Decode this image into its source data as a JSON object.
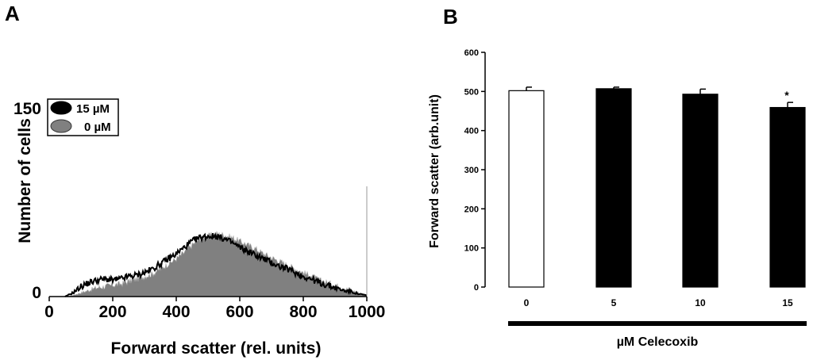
{
  "chart_data": [
    {
      "type": "area",
      "panel_label": "A",
      "xlabel": "Forward scatter (rel. units)",
      "ylabel": "Number of cells",
      "xlim": [
        0,
        1000
      ],
      "ylim": [
        0,
        150
      ],
      "x_ticks": [
        "0",
        "200",
        "400",
        "600",
        "800",
        "1000"
      ],
      "y_ticks": [
        "0",
        "150"
      ],
      "legend": {
        "placement": "top-left",
        "entries": [
          "15 µM",
          "0 µM"
        ]
      },
      "grid": false,
      "x": [
        50,
        75,
        100,
        125,
        150,
        175,
        200,
        225,
        250,
        275,
        300,
        325,
        350,
        375,
        400,
        425,
        450,
        475,
        500,
        525,
        550,
        575,
        600,
        625,
        650,
        675,
        700,
        725,
        750,
        775,
        800,
        825,
        850,
        875,
        900,
        925,
        950,
        975,
        1000
      ],
      "series": [
        {
          "name": "15 µM",
          "color": "#000000",
          "style": "line",
          "values": [
            0,
            3,
            8,
            11,
            13,
            14,
            13,
            14,
            16,
            17,
            19,
            22,
            26,
            30,
            34,
            39,
            44,
            47,
            48,
            48,
            46,
            43,
            39,
            36,
            33,
            30,
            27,
            24,
            22,
            19,
            16,
            14,
            11,
            9,
            7,
            5,
            4,
            2,
            1
          ]
        },
        {
          "name": "0 µM",
          "color": "#808080",
          "style": "filled",
          "values": [
            0,
            1,
            3,
            5,
            7,
            8,
            9,
            10,
            12,
            14,
            16,
            18,
            22,
            26,
            30,
            35,
            41,
            46,
            48,
            50,
            49,
            47,
            44,
            41,
            38,
            34,
            31,
            28,
            25,
            22,
            19,
            16,
            13,
            11,
            9,
            7,
            5,
            3,
            1
          ]
        }
      ]
    },
    {
      "type": "bar",
      "panel_label": "B",
      "xlabel": "µM Celecoxib",
      "ylabel": "Forward scatter (arb.unit)",
      "categories": [
        "0",
        "5",
        "10",
        "15"
      ],
      "values": [
        502,
        507,
        493,
        459
      ],
      "errors": [
        9,
        4,
        13,
        13
      ],
      "annotations": [
        "",
        "",
        "",
        "*"
      ],
      "bar_colors": [
        "#ffffff",
        "#000000",
        "#000000",
        "#000000"
      ],
      "ylim": [
        0,
        600
      ],
      "y_ticks": [
        "0",
        "100",
        "200",
        "300",
        "400",
        "500",
        "600"
      ],
      "grid": false
    }
  ]
}
